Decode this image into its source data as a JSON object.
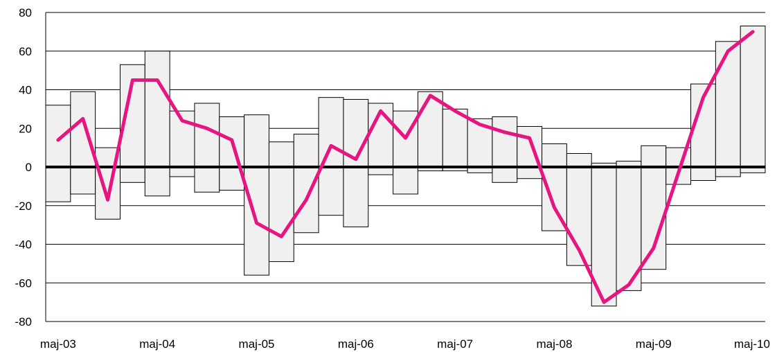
{
  "chart_data": {
    "type": "bar",
    "title": "",
    "xlabel": "",
    "ylabel": "",
    "ylim": [
      -80,
      80
    ],
    "y_ticks": [
      80,
      60,
      40,
      20,
      0,
      -20,
      -40,
      -60,
      -80
    ],
    "x_tick_labels": [
      "maj-03",
      "maj-04",
      "maj-05",
      "maj-06",
      "maj-07",
      "maj-08",
      "maj-09",
      "maj-10"
    ],
    "grid": true,
    "colors": {
      "bar_fill": "#f0f0f0",
      "bar_stroke": "#000000",
      "line": "#e6157f"
    },
    "bars": {
      "description_type": "floating_range",
      "high": [
        32,
        39,
        10,
        53,
        60,
        29,
        33,
        26,
        27,
        13,
        17,
        36,
        35,
        33,
        29,
        39,
        30,
        25,
        26,
        21,
        12,
        7,
        2,
        3,
        11,
        10,
        43,
        65,
        73
      ],
      "low": [
        -18,
        -14,
        -27,
        -8,
        -15,
        -5,
        -13,
        -12,
        -56,
        -49,
        -34,
        -25,
        -31,
        -4,
        -14,
        -2,
        -2,
        -3,
        -8,
        -6,
        -33,
        -51,
        -72,
        -64,
        -53,
        -9,
        -7,
        -5,
        -3
      ]
    },
    "series": [
      {
        "values": [
          14,
          25,
          -17,
          45,
          45,
          24,
          20,
          14,
          -29,
          -36,
          -17,
          11,
          4,
          29,
          15,
          37,
          29,
          22,
          18,
          15,
          -21,
          -43,
          -70,
          -61,
          -42,
          -3,
          36,
          60,
          70
        ]
      }
    ]
  }
}
